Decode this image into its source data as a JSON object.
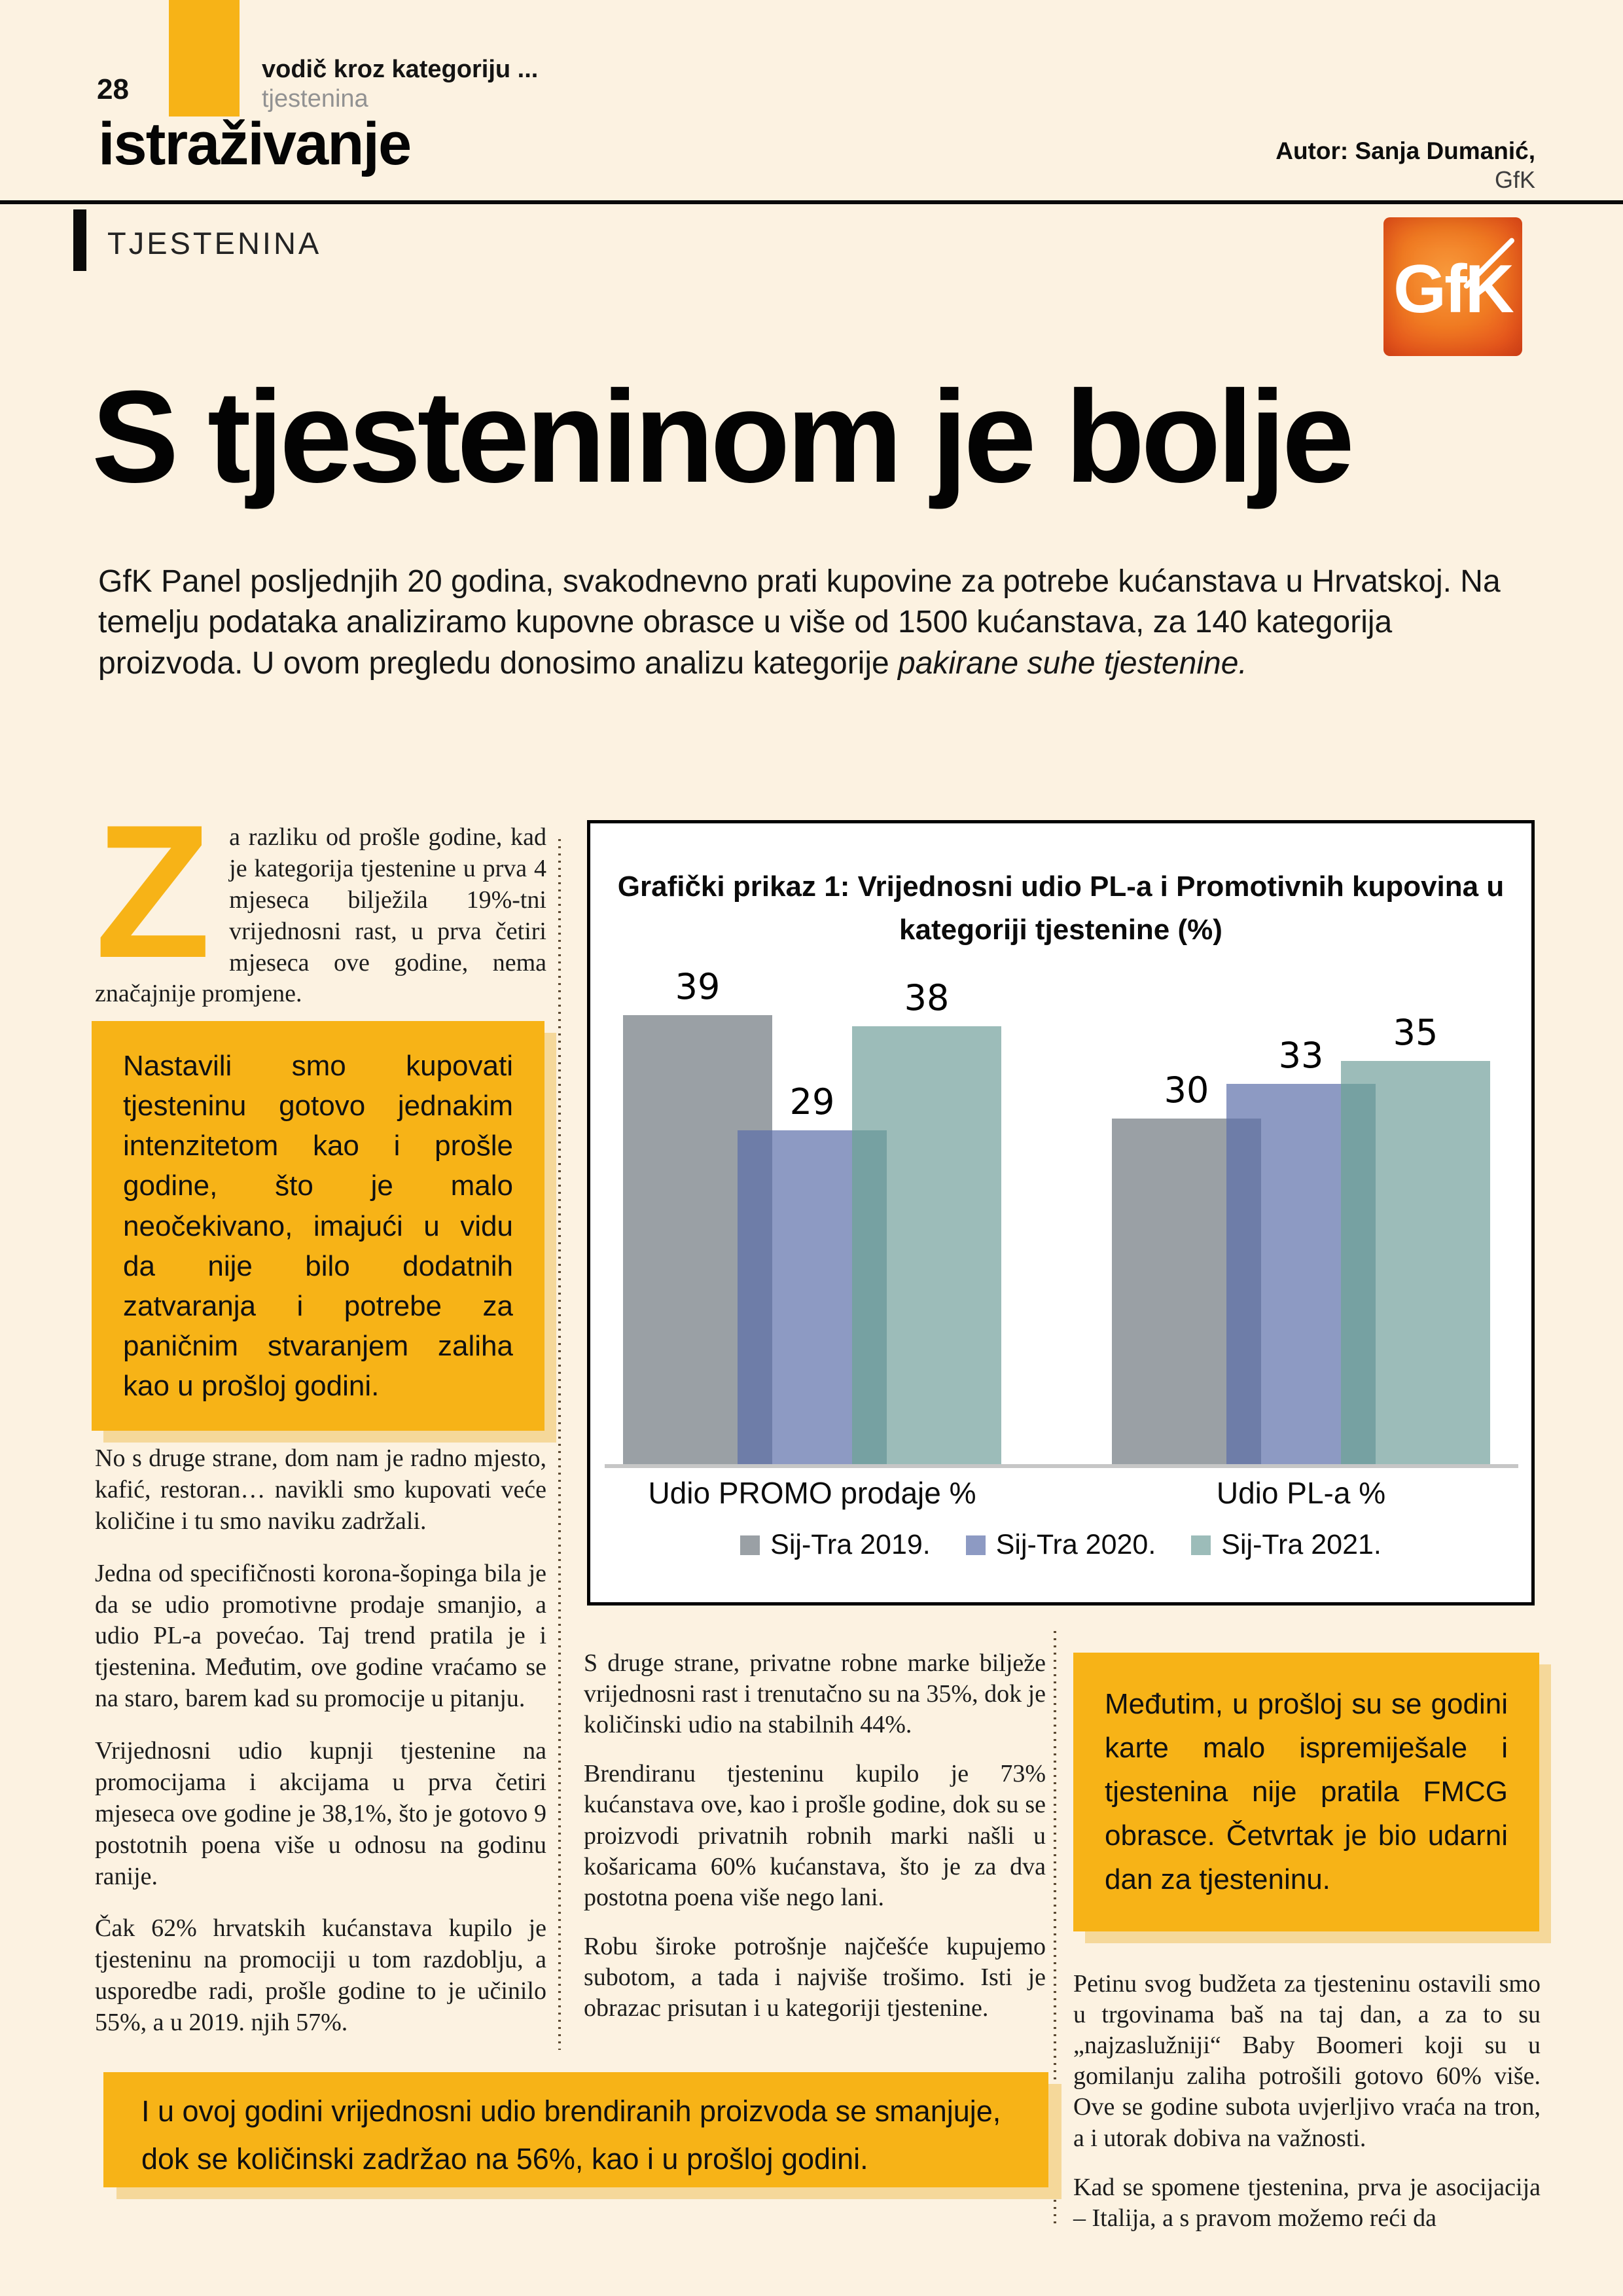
{
  "header": {
    "page_number": "28",
    "kicker": "vodič kroz kategoriju ...",
    "kicker_sub": "tjestenina",
    "section_title": "istraživanje",
    "author_line": "Autor: Sanja Dumanić,",
    "author_org": "GfK",
    "category_label": "TJESTENINA",
    "logo_text": "GfK"
  },
  "article": {
    "title": "S tjesteninom je bolje",
    "intro": "GfK Panel posljednjih 20 godina, svakodnevno prati kupovine za potrebe kućanstava u Hrvatskoj. Na temelju podataka analiziramo kupovne obrasce u više od 1500 kućanstava, za 140 kategorija proizvoda. U ovom pregledu donosimo analizu kategorije ",
    "intro_italic": "pakirane suhe tjestenine.",
    "dropcap_letter": "Z",
    "p1": "a razliku od prošle godine, kad je kategorija tjestenine u prva 4 mjeseca bilježila 19%-tni vrijednosni rast, u prva četiri mjeseca ove godine, nema značajnije promjene.",
    "callout1": "Nastavili smo kupovati tjesteninu gotovo jednakim intenzitetom kao i prošle godine, što je malo neočekivano, imajući u vidu da nije bilo dodatnih zatvaranja i potrebe za paničnim stvaranjem zaliha kao u prošloj godini.",
    "left_paragraphs": [
      "No s druge strane, dom nam je radno mjesto, kafić, restoran… navikli smo kupovati veće količine i tu smo naviku zadržali.",
      "Jedna od specifičnosti korona-šopinga bila je da se udio promotivne prodaje smanjio, a udio PL-a povećao. Taj trend pratila je i tjestenina. Međutim, ove godine vraćamo se na staro, barem kad su promocije u pitanju.",
      "Vrijednosni udio kupnji tjestenine na promocijama i akcijama u prva četiri mjeseca ove godine je 38,1%, što je gotovo 9 postotnih poena više u odnosu na godinu ranije.",
      "Čak 62% hrvatskih kućanstava kupilo je tjesteninu na promociji u tom razdoblju, a usporedbe radi, prošle godine to je učinilo 55%, a u 2019. njih 57%."
    ],
    "middle_paragraphs": [
      "S druge strane, privatne robne marke bilježe vrijednosni rast i trenutačno su na 35%, dok je količinski udio na stabilnih 44%.",
      "Brendiranu tjesteninu kupilo je 73% kućanstava ove, kao i prošle godine, dok su se proizvodi privatnih robnih marki našli u košaricama 60% kućanstava, što je za dva postotna poena više nego lani.",
      "Robu široke potrošnje najčešće kupujemo subotom, a tada i najviše trošimo. Isti je obrazac prisutan i u kategoriji tjestenine."
    ],
    "callout2": "Međutim, u prošloj su se godini karte malo ispremiješale i tjestenina nije pratila FMCG obrasce. Četvrtak je bio udarni dan za tjesteninu.",
    "right_paragraphs": [
      "Petinu svog budžeta za tjesteninu ostavili smo u trgovinama baš na taj dan, a za to su „najzaslužniji“ Baby Boomeri koji su u gomilanju zaliha potrošili gotovo 60% više. Ove se godine subota uvjerljivo vraća na tron, a i utorak dobiva na važnosti.",
      "Kad se spomene tjestenina, prva je asocijacija – Italija, a s pravom možemo reći da"
    ],
    "callout3": "I u ovoj godini vrijednosni udio brendiranih proizvoda se smanjuje, dok se količinski zadržao na 56%, kao i u prošloj godini."
  },
  "chart_data": {
    "type": "bar",
    "title": "Grafički prikaz 1: Vrijednosni udio PL-a i Promotivnih kupovina u kategoriji tjestenine (%)",
    "categories": [
      "Udio PROMO prodaje %",
      "Udio PL-a %"
    ],
    "series": [
      {
        "name": "Sij-Tra 2019.",
        "color": "#9AA0A5",
        "overlap_color": null,
        "values": [
          39,
          30
        ]
      },
      {
        "name": "Sij-Tra 2020.",
        "color": "#8D9AC3",
        "overlap_color": "#6E7DA8",
        "values": [
          29,
          33
        ]
      },
      {
        "name": "Sij-Tra 2021.",
        "color": "#9CBCB9",
        "overlap_color": "#76A1A2",
        "values": [
          38,
          35
        ]
      }
    ],
    "ylim": [
      0,
      42
    ],
    "grid": false,
    "legend_position": "bottom",
    "value_labels": true
  },
  "colors": {
    "accent_yellow": "#F7B317",
    "yellow_shadow": "#F5D89A",
    "page_background": "#FCF2E1",
    "chart_border": "#000000",
    "axis_line": "#C6C6C6",
    "logo_orange_light": "#F89A3C",
    "logo_orange_dark": "#D8471C",
    "dotted_line": "#5D4A33"
  }
}
